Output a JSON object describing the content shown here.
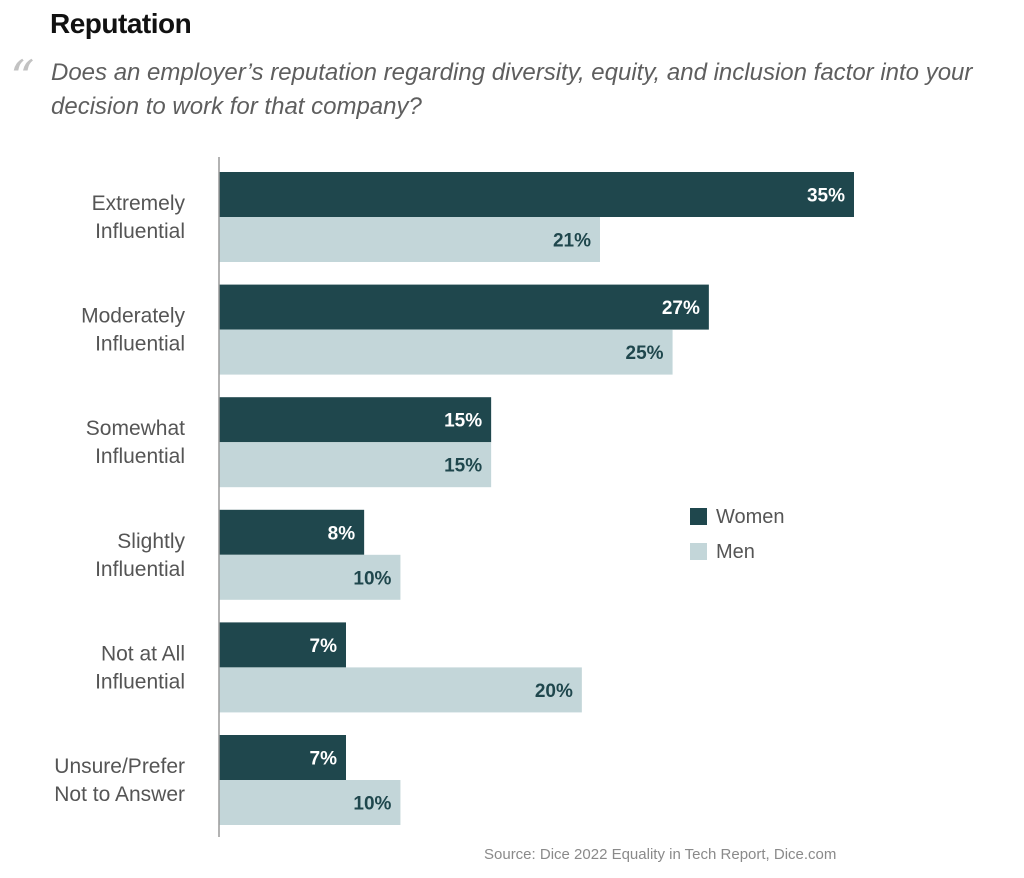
{
  "section": {
    "title": "Reputation",
    "quote_mark": "“",
    "question": "Does an employer’s reputation regarding diversity, equity, and inclusion factor into your decision to work for that company?"
  },
  "chart_data": {
    "type": "bar",
    "orientation": "horizontal",
    "categories": [
      [
        "Extremely",
        "Influential"
      ],
      [
        "Moderately",
        "Influential"
      ],
      [
        "Somewhat",
        "Influential"
      ],
      [
        "Slightly",
        "Influential"
      ],
      [
        "Not at All",
        "Influential"
      ],
      [
        "Unsure/Prefer",
        "Not to Answer"
      ]
    ],
    "series": [
      {
        "name": "Women",
        "color": "#1f474d",
        "label_color": "#ffffff",
        "values": [
          35,
          27,
          15,
          8,
          7,
          7
        ],
        "labels": [
          "35%",
          "27%",
          "15%",
          "8%",
          "7%",
          "7%"
        ]
      },
      {
        "name": "Men",
        "color": "#c3d6d9",
        "label_color": "#1f474d",
        "values": [
          21,
          25,
          15,
          10,
          20,
          10
        ],
        "labels": [
          "21%",
          "25%",
          "15%",
          "10%",
          "20%",
          "10%"
        ]
      }
    ],
    "xlim": [
      0,
      35
    ],
    "grid": false,
    "legend_position": "right"
  },
  "source": "Source: Dice 2022 Equality in Tech Report, Dice.com"
}
